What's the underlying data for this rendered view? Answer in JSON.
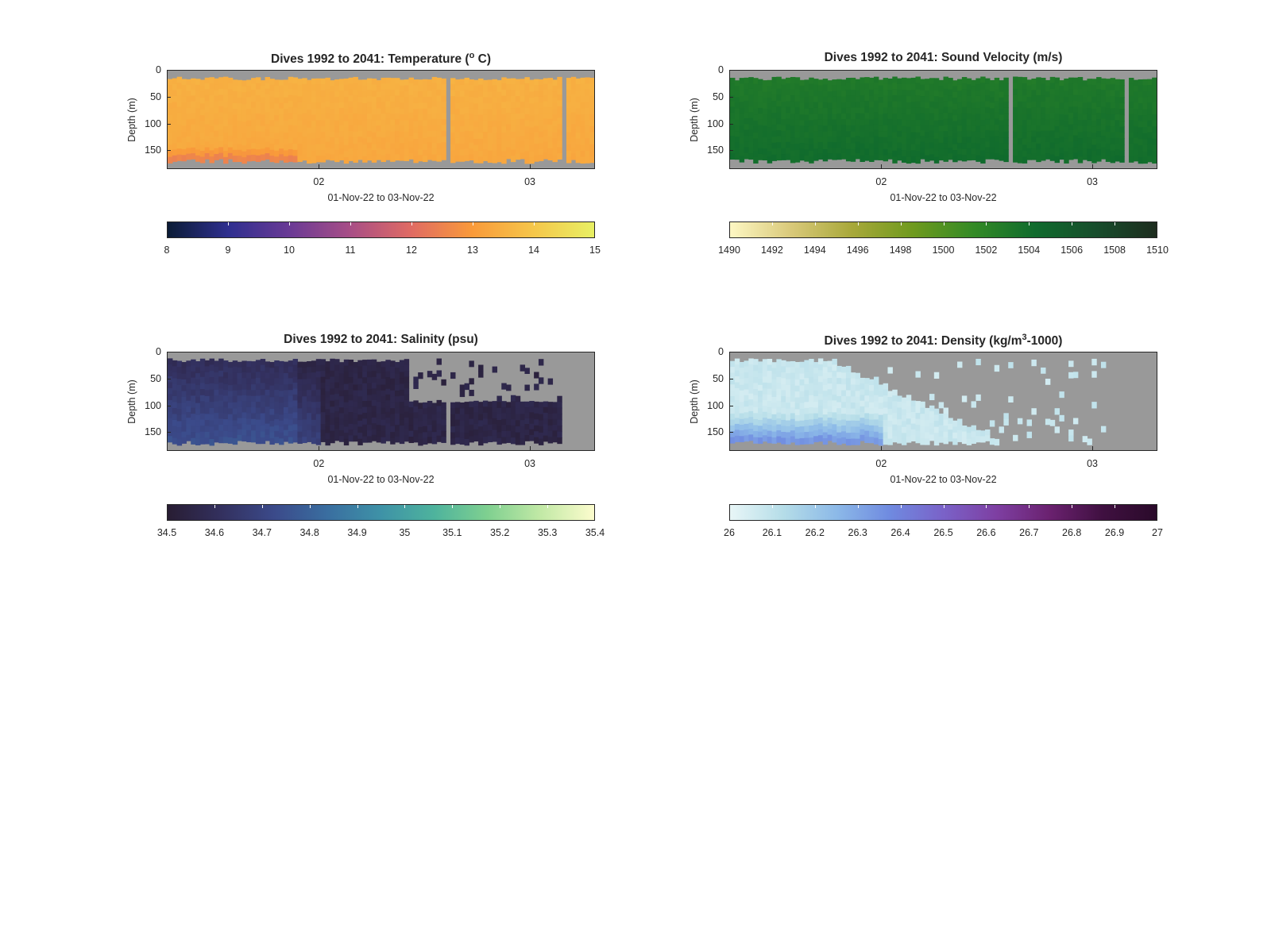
{
  "chart_data": [
    {
      "type": "heatmap",
      "title": "Dives 1992 to 2041: Temperature (° C)",
      "title_text": "Dives 1992 to 2041: Temperature (",
      "title_sup": "o",
      "title_tail": " C)",
      "xlabel": "01-Nov-22 to 03-Nov-22",
      "ylabel": "Depth (m)",
      "x_ticks": [
        "02",
        "03"
      ],
      "y_ticks": [
        "0",
        "50",
        "100",
        "150"
      ],
      "ylim": [
        0,
        185
      ],
      "colorbar": {
        "ticks": [
          "8",
          "9",
          "10",
          "11",
          "12",
          "13",
          "14",
          "15"
        ],
        "range": [
          8,
          15
        ]
      },
      "colors": [
        "#0b1c36",
        "#2f2f8f",
        "#6a3a95",
        "#a84e86",
        "#e06b63",
        "#f99a3a",
        "#f5c64a",
        "#e8f064"
      ],
      "typical_value": 13.5
    },
    {
      "type": "heatmap",
      "title": "Dives 1992 to 2041: Sound Velocity (m/s)",
      "title_text": "Dives 1992 to 2041: Sound Velocity (m/s)",
      "title_sup": "",
      "title_tail": "",
      "xlabel": "01-Nov-22 to 03-Nov-22",
      "ylabel": "Depth (m)",
      "x_ticks": [
        "02",
        "03"
      ],
      "y_ticks": [
        "0",
        "50",
        "100",
        "150"
      ],
      "ylim": [
        0,
        185
      ],
      "colorbar": {
        "ticks": [
          "1490",
          "1492",
          "1494",
          "1496",
          "1498",
          "1500",
          "1502",
          "1504",
          "1506",
          "1508",
          "1510"
        ],
        "range": [
          1490,
          1510
        ]
      },
      "colors": [
        "#fdf7c3",
        "#d9c97a",
        "#a8a83a",
        "#6f9a1e",
        "#338a26",
        "#106b2d",
        "#174d2c",
        "#1d2c1e"
      ],
      "typical_value": 1503
    },
    {
      "type": "heatmap",
      "title": "Dives 1992 to 2041: Salinity (psu)",
      "title_text": "Dives 1992 to 2041: Salinity (psu)",
      "title_sup": "",
      "title_tail": "",
      "xlabel": "01-Nov-22 to 03-Nov-22",
      "ylabel": "Depth (m)",
      "x_ticks": [
        "02",
        "03"
      ],
      "y_ticks": [
        "0",
        "50",
        "100",
        "150"
      ],
      "ylim": [
        0,
        185
      ],
      "colorbar": {
        "ticks": [
          "34.5",
          "34.6",
          "34.7",
          "34.8",
          "34.9",
          "35",
          "35.1",
          "35.2",
          "35.3",
          "35.4"
        ],
        "range": [
          34.5,
          35.4
        ]
      },
      "colors": [
        "#281d33",
        "#33305e",
        "#3b4a8a",
        "#3a6ea0",
        "#3e92a7",
        "#4eb39d",
        "#7fd090",
        "#c2e9a6",
        "#fcfccd"
      ],
      "typical_value": 34.6
    },
    {
      "type": "heatmap",
      "title": "Dives 1992 to 2041: Density (kg/m³-1000)",
      "title_text": "Dives 1992 to 2041: Density (kg/m",
      "title_sup": "3",
      "title_tail": "-1000)",
      "xlabel": "01-Nov-22 to 03-Nov-22",
      "ylabel": "Depth (m)",
      "x_ticks": [
        "02",
        "03"
      ],
      "y_ticks": [
        "0",
        "50",
        "100",
        "150"
      ],
      "ylim": [
        0,
        185
      ],
      "colorbar": {
        "ticks": [
          "26",
          "26.1",
          "26.2",
          "26.3",
          "26.4",
          "26.5",
          "26.6",
          "26.7",
          "26.8",
          "26.9",
          "27"
        ],
        "range": [
          26,
          27
        ]
      },
      "colors": [
        "#e8f6f7",
        "#b5dde8",
        "#8cb9e8",
        "#6f8ae0",
        "#7a62c8",
        "#7e3fa2",
        "#6a216f",
        "#3f1040",
        "#2a0a2a"
      ],
      "typical_value": 26.05
    }
  ]
}
